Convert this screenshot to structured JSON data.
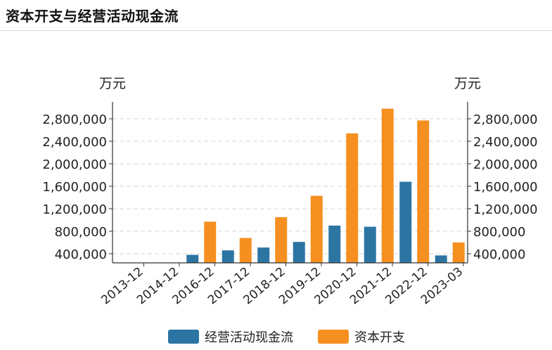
{
  "header": {
    "title": "资本开支与经营活动现金流"
  },
  "chart_data": {
    "type": "bar",
    "title": "资本开支与经营活动现金流",
    "categories": [
      "2013-12",
      "2014-12",
      "2016-12",
      "2017-12",
      "2018-12",
      "2019-12",
      "2020-12",
      "2021-12",
      "2022-12",
      "2023-03"
    ],
    "series": [
      {
        "name": "经营活动现金流",
        "color": "#2c75a3",
        "values": [
          null,
          null,
          380000,
          460000,
          510000,
          610000,
          900000,
          880000,
          1680000,
          370000
        ]
      },
      {
        "name": "资本开支",
        "color": "#f59020",
        "values": [
          null,
          null,
          970000,
          680000,
          1050000,
          1430000,
          2540000,
          2980000,
          2770000,
          600000
        ]
      }
    ],
    "ylabel_left": "万元",
    "ylabel_right": "万元",
    "yticks": [
      "400,000",
      "800,000",
      "1,200,000",
      "1,600,000",
      "2,000,000",
      "2,400,000",
      "2,800,000"
    ],
    "ylim": [
      200000,
      3000000
    ],
    "grid": true,
    "legend_position": "bottom"
  }
}
